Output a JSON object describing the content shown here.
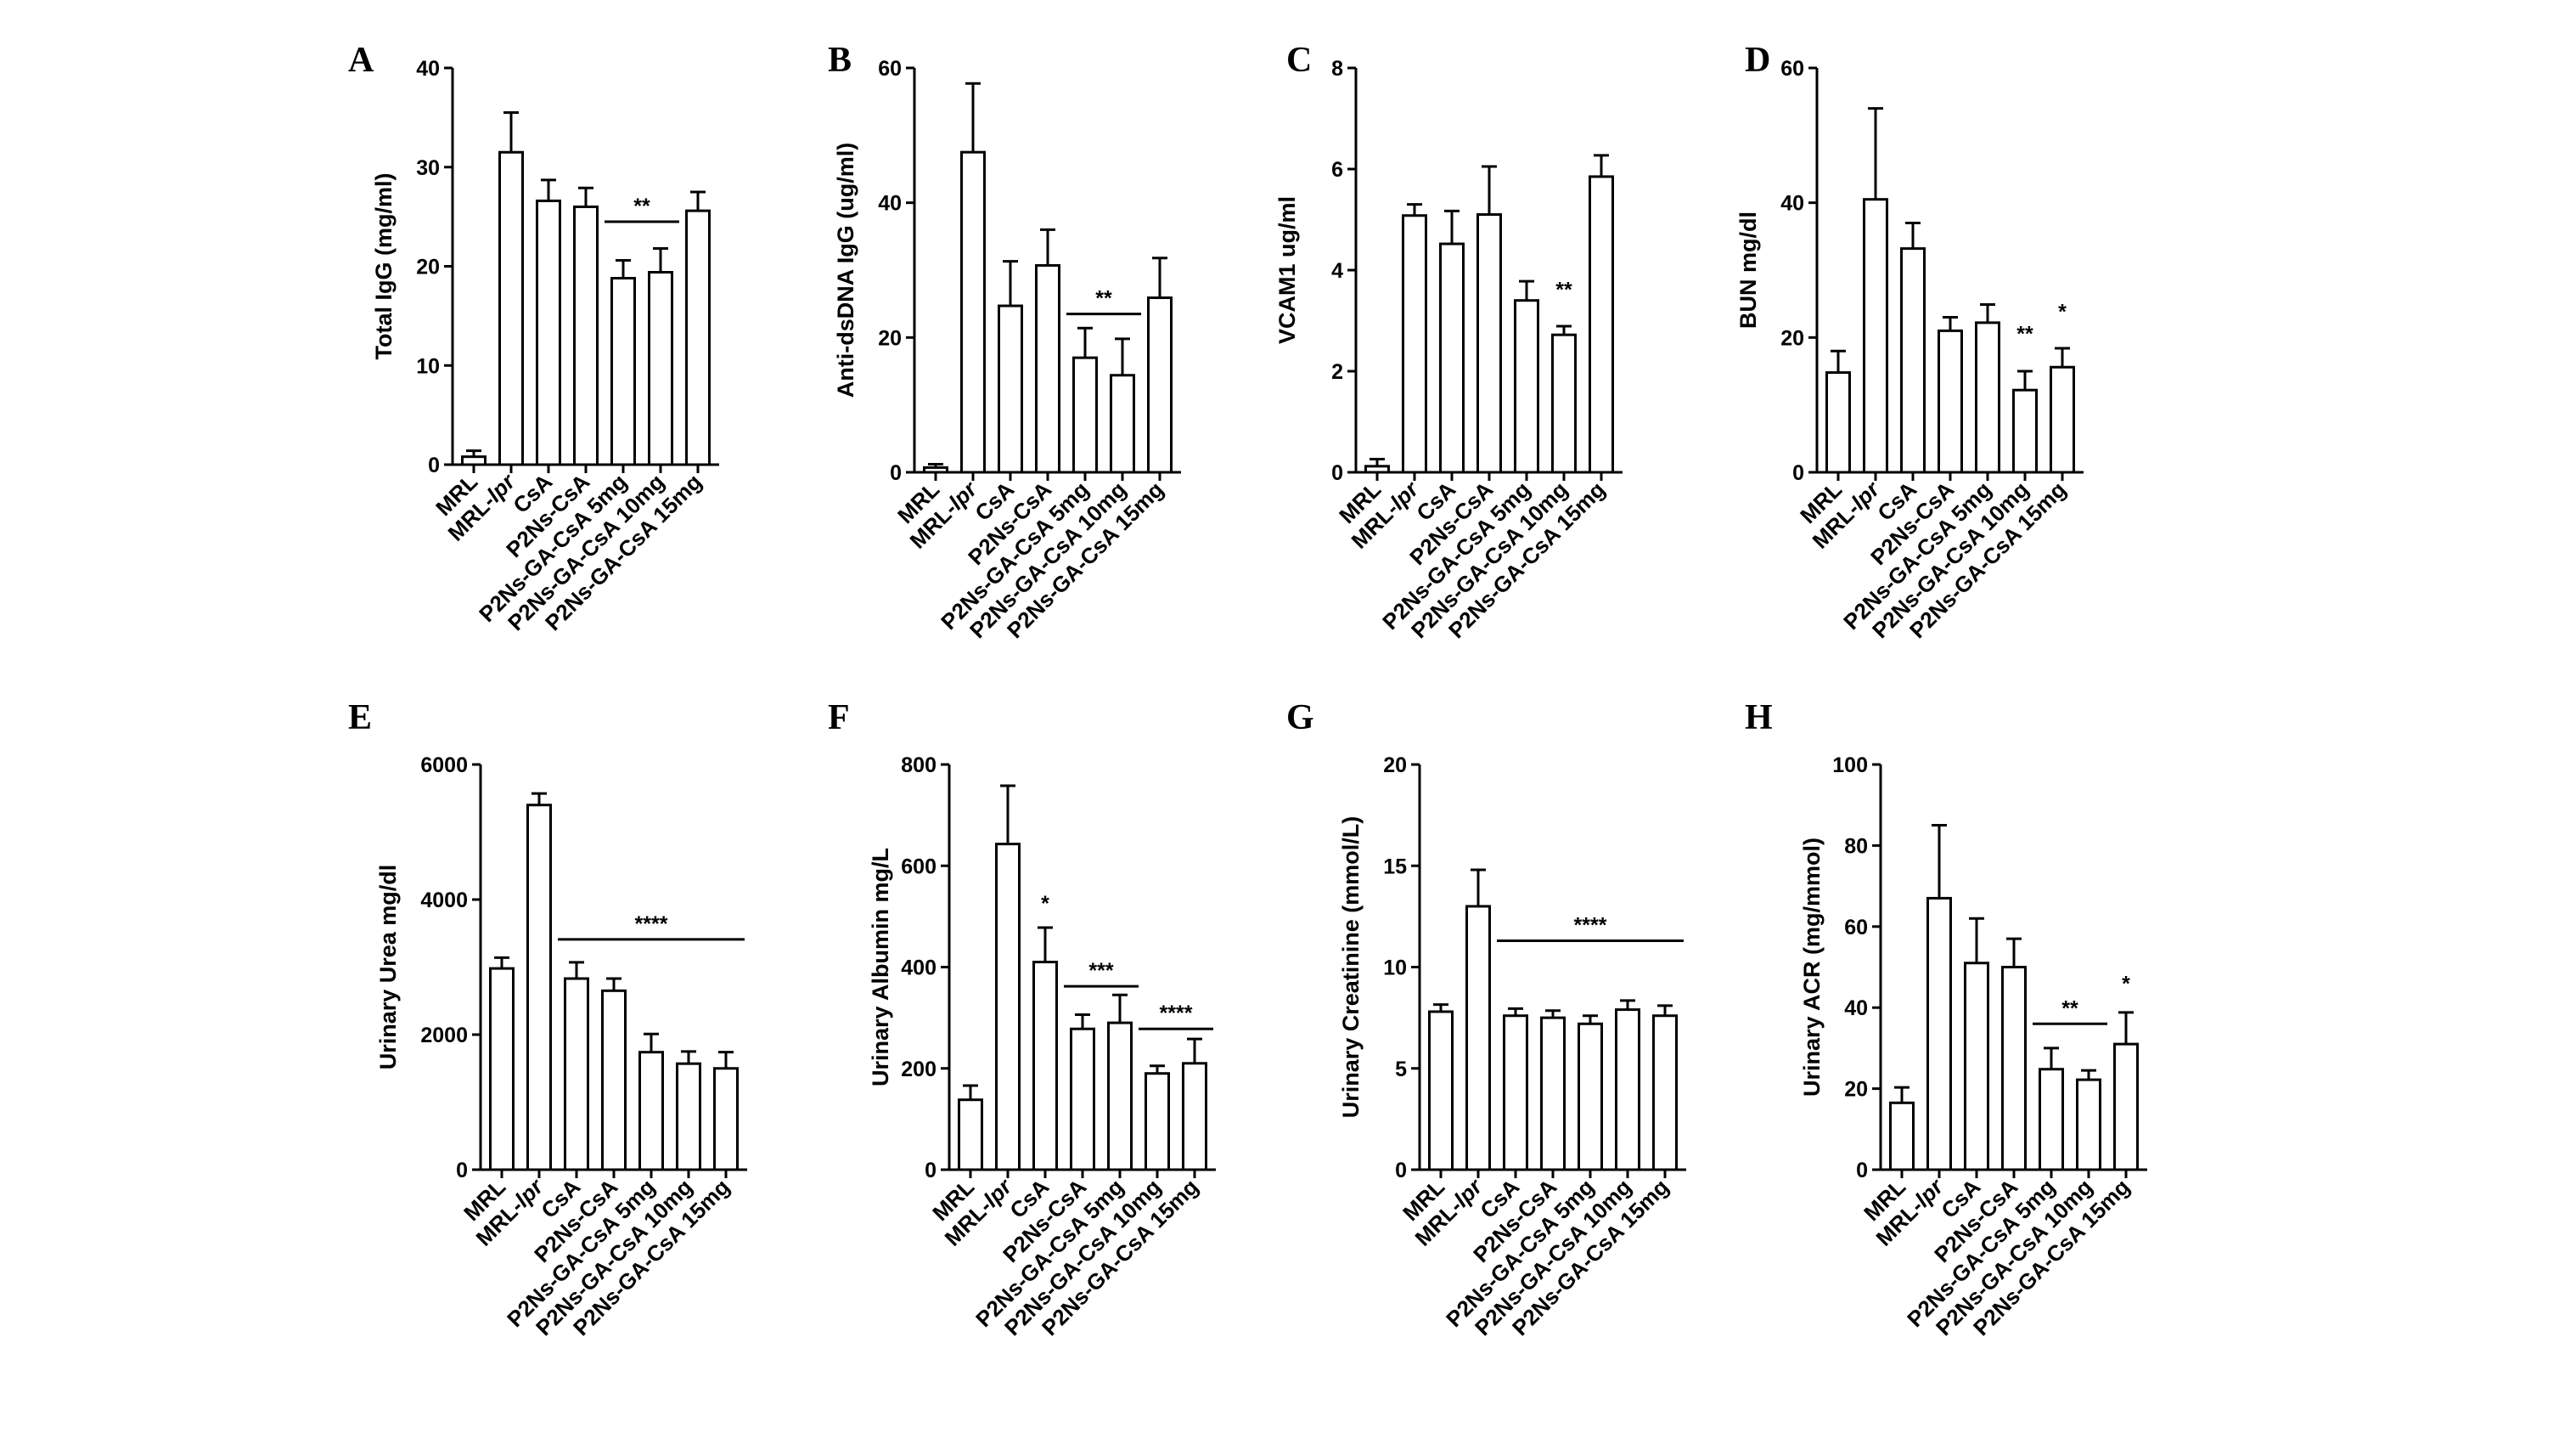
{
  "figure": {
    "background": "#ffffff",
    "bar_fill": "#ffffff",
    "stroke_color": "#000000"
  },
  "chart_data": [
    {
      "panel": "A",
      "type": "bar",
      "ylabel": "Total IgG (mg/ml)",
      "ylim": [
        0,
        40
      ],
      "yticks": [
        0,
        10,
        20,
        30,
        40
      ],
      "categories": [
        "MRL",
        "MRL-lpr",
        "CsA",
        "P2Ns-CsA",
        "P2Ns-GA-CsA 5mg",
        "P2Ns-GA-CsA 10mg",
        "P2Ns-GA-CsA 15mg"
      ],
      "values": [
        0.8,
        31.5,
        26.6,
        26.0,
        18.8,
        19.4,
        25.6
      ],
      "errors": [
        0.6,
        4.0,
        2.1,
        1.9,
        1.8,
        2.4,
        1.9
      ],
      "annotations": [
        {
          "text": "**",
          "from": 4,
          "to": 5,
          "y": 24.5,
          "line": true
        }
      ],
      "grid": false
    },
    {
      "panel": "B",
      "type": "bar",
      "ylabel": "Anti-dsDNA IgG (ug/ml)",
      "ylim": [
        0,
        60
      ],
      "yticks": [
        0,
        20,
        40,
        60
      ],
      "categories": [
        "MRL",
        "MRL-lpr",
        "CsA",
        "P2Ns-CsA",
        "P2Ns-GA-CsA 5mg",
        "P2Ns-GA-CsA 10mg",
        "P2Ns-GA-CsA 15mg"
      ],
      "values": [
        0.7,
        47.5,
        24.7,
        30.7,
        17.0,
        14.4,
        25.9
      ],
      "errors": [
        0.5,
        10.2,
        6.6,
        5.3,
        4.4,
        5.4,
        5.9
      ],
      "annotations": [
        {
          "text": "**",
          "from": 4,
          "to": 5,
          "y": 23.5,
          "line": true
        }
      ],
      "grid": false
    },
    {
      "panel": "C",
      "type": "bar",
      "ylabel": "VCAM1 ug/ml",
      "ylim": [
        0,
        8
      ],
      "yticks": [
        0,
        2,
        4,
        6,
        8
      ],
      "categories": [
        "MRL",
        "MRL-lpr",
        "CsA",
        "P2Ns-CsA",
        "P2Ns-GA-CsA 5mg",
        "P2Ns-GA-CsA 10mg",
        "P2Ns-GA-CsA 15mg"
      ],
      "values": [
        0.12,
        5.08,
        4.52,
        5.1,
        3.4,
        2.72,
        5.85
      ],
      "errors": [
        0.14,
        0.22,
        0.65,
        0.95,
        0.38,
        0.17,
        0.42
      ],
      "annotations": [
        {
          "text": "**",
          "from": 5,
          "to": 5,
          "y": 3.3,
          "line": false
        }
      ],
      "grid": false
    },
    {
      "panel": "D",
      "type": "bar",
      "ylabel": "BUN mg/dl",
      "ylim": [
        0,
        60
      ],
      "yticks": [
        0,
        20,
        40,
        60
      ],
      "categories": [
        "MRL",
        "MRL-lpr",
        "CsA",
        "P2Ns-CsA",
        "P2Ns-GA-CsA 5mg",
        "P2Ns-GA-CsA 10mg",
        "P2Ns-GA-CsA 15mg"
      ],
      "values": [
        14.8,
        40.5,
        33.2,
        21.0,
        22.2,
        12.2,
        15.6
      ],
      "errors": [
        3.2,
        13.5,
        3.8,
        2.0,
        2.7,
        2.8,
        2.8
      ],
      "annotations": [
        {
          "text": "**",
          "from": 5,
          "to": 5,
          "y": 18.2,
          "line": false
        },
        {
          "text": "*",
          "from": 6,
          "to": 6,
          "y": 21.5,
          "line": false
        }
      ],
      "grid": false
    },
    {
      "panel": "E",
      "type": "bar",
      "ylabel": "Urinary Urea mg/dl",
      "ylim": [
        0,
        6000
      ],
      "yticks": [
        0,
        2000,
        4000,
        6000
      ],
      "categories": [
        "MRL",
        "MRL-lpr",
        "CsA",
        "P2Ns-CsA",
        "P2Ns-GA-CsA 5mg",
        "P2Ns-GA-CsA 10mg",
        "P2Ns-GA-CsA 15mg"
      ],
      "values": [
        2980,
        5400,
        2830,
        2650,
        1740,
        1570,
        1500
      ],
      "errors": [
        160,
        170,
        240,
        180,
        270,
        180,
        240
      ],
      "annotations": [
        {
          "text": "****",
          "from": 2,
          "to": 6,
          "y": 3410,
          "line": true
        }
      ],
      "grid": false
    },
    {
      "panel": "F",
      "type": "bar",
      "ylabel": "Urinary Albumin mg/L",
      "ylim": [
        0,
        800
      ],
      "yticks": [
        0,
        200,
        400,
        600,
        800
      ],
      "categories": [
        "MRL",
        "MRL-lpr",
        "CsA",
        "P2Ns-CsA",
        "P2Ns-GA-CsA 5mg",
        "P2Ns-GA-CsA 10mg",
        "P2Ns-GA-CsA 15mg"
      ],
      "values": [
        138,
        643,
        410,
        278,
        290,
        190,
        210
      ],
      "errors": [
        28,
        115,
        68,
        28,
        55,
        15,
        48
      ],
      "annotations": [
        {
          "text": "*",
          "from": 2,
          "to": 2,
          "y": 495,
          "line": false
        },
        {
          "text": "***",
          "from": 3,
          "to": 4,
          "y": 362,
          "line": true
        },
        {
          "text": "****",
          "from": 5,
          "to": 6,
          "y": 278,
          "line": true
        }
      ],
      "grid": false
    },
    {
      "panel": "G",
      "type": "bar",
      "ylabel": "Urinary Creatinine (mmol/L)",
      "ylim": [
        0,
        20
      ],
      "yticks": [
        0,
        5,
        10,
        15,
        20
      ],
      "categories": [
        "MRL",
        "MRL-lpr",
        "CsA",
        "P2Ns-CsA",
        "P2Ns-GA-CsA 5mg",
        "P2Ns-GA-CsA 10mg",
        "P2Ns-GA-CsA 15mg"
      ],
      "values": [
        7.8,
        13.0,
        7.6,
        7.5,
        7.2,
        7.9,
        7.6
      ],
      "errors": [
        0.35,
        1.8,
        0.35,
        0.35,
        0.4,
        0.45,
        0.5
      ],
      "annotations": [
        {
          "text": "****",
          "from": 2,
          "to": 6,
          "y": 11.3,
          "line": true
        }
      ],
      "grid": false
    },
    {
      "panel": "H",
      "type": "bar",
      "ylabel": "Urinary ACR (mg/mmol)",
      "ylim": [
        0,
        100
      ],
      "yticks": [
        0,
        20,
        40,
        60,
        80,
        100
      ],
      "categories": [
        "MRL",
        "MRL-lpr",
        "CsA",
        "P2Ns-CsA",
        "P2Ns-GA-CsA 5mg",
        "P2Ns-GA-CsA 10mg",
        "P2Ns-GA-CsA 15mg"
      ],
      "values": [
        16.5,
        67,
        51,
        50,
        24.8,
        22.2,
        31
      ],
      "errors": [
        3.8,
        18,
        11,
        7,
        5.2,
        2.3,
        7.8
      ],
      "annotations": [
        {
          "text": "**",
          "from": 4,
          "to": 5,
          "y": 36,
          "line": true
        },
        {
          "text": "*",
          "from": 6,
          "to": 6,
          "y": 42,
          "line": false
        }
      ],
      "grid": false
    }
  ]
}
